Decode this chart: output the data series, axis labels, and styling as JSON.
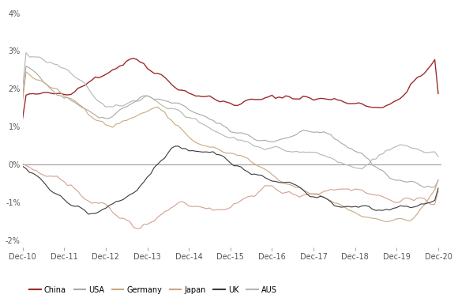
{
  "title": "",
  "xlabel": "",
  "ylabel": "",
  "ylim": [
    -2.2,
    4.2
  ],
  "xlim": [
    2010.92,
    2021.0
  ],
  "yticks": [
    -2,
    -1,
    0,
    1,
    2,
    3,
    4
  ],
  "ytick_labels": [
    "-2%",
    "-1%",
    "0%",
    "1%",
    "2%",
    "3%",
    "4%"
  ],
  "xtick_labels": [
    "Dec-10",
    "Dec-11",
    "Dec-12",
    "Dec-13",
    "Dec-14",
    "Dec-15",
    "Dec-16",
    "Dec-17",
    "Dec-18",
    "Dec-19",
    "Dec-20"
  ],
  "series": {
    "China": {
      "color": "#9e2a2a",
      "lw": 1.0
    },
    "USA": {
      "color": "#a8a8a8",
      "lw": 0.8
    },
    "Germany": {
      "color": "#c9a882",
      "lw": 0.8
    },
    "Japan": {
      "color": "#d4a090",
      "lw": 0.8
    },
    "UK": {
      "color": "#3a3a3a",
      "lw": 0.8
    },
    "AUS": {
      "color": "#b0b8b0",
      "lw": 0.8
    }
  },
  "legend_order": [
    "China",
    "USA",
    "Germany",
    "Japan",
    "UK",
    "AUS"
  ],
  "background_color": "#ffffff",
  "zero_line_color": "#999999",
  "zero_line_lw": 0.8
}
